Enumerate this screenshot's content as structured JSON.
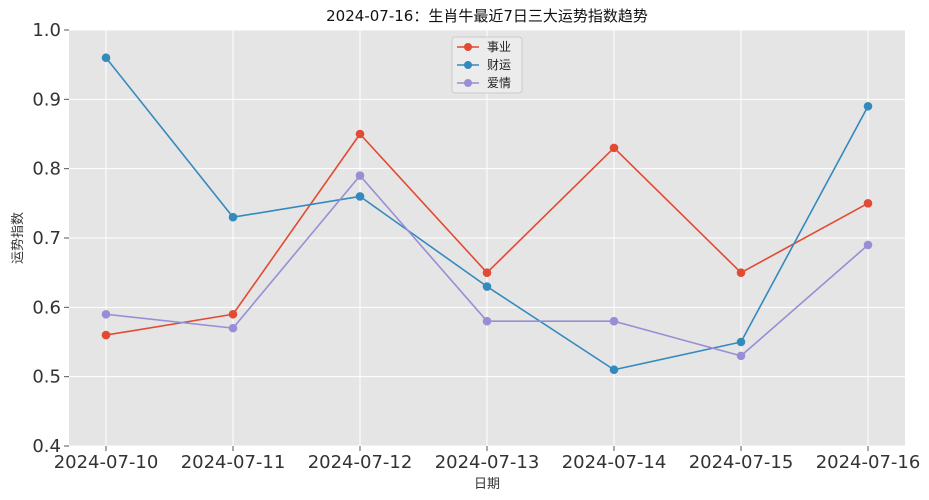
{
  "chart_data": {
    "type": "line",
    "title": "2024-07-16：生肖牛最近7日三大运势指数趋势",
    "xlabel": "日期",
    "ylabel": "运势指数",
    "categories": [
      "2024-07-10",
      "2024-07-11",
      "2024-07-12",
      "2024-07-13",
      "2024-07-14",
      "2024-07-15",
      "2024-07-16"
    ],
    "ylim": [
      0.4,
      1.0
    ],
    "yticks": [
      "0.4",
      "0.5",
      "0.6",
      "0.7",
      "0.8",
      "0.9",
      "1.0"
    ],
    "grid": true,
    "legend_position": "top-center",
    "series": [
      {
        "name": "事业",
        "color": "#E24A33",
        "values": [
          0.56,
          0.59,
          0.85,
          0.65,
          0.83,
          0.65,
          0.75
        ]
      },
      {
        "name": "财运",
        "color": "#348ABD",
        "values": [
          0.96,
          0.73,
          0.76,
          0.63,
          0.51,
          0.55,
          0.89
        ]
      },
      {
        "name": "爱情",
        "color": "#988ED5",
        "values": [
          0.59,
          0.57,
          0.79,
          0.58,
          0.58,
          0.53,
          0.69
        ]
      }
    ],
    "plot_background": "#E5E5E5",
    "grid_color": "#FFFFFF"
  }
}
